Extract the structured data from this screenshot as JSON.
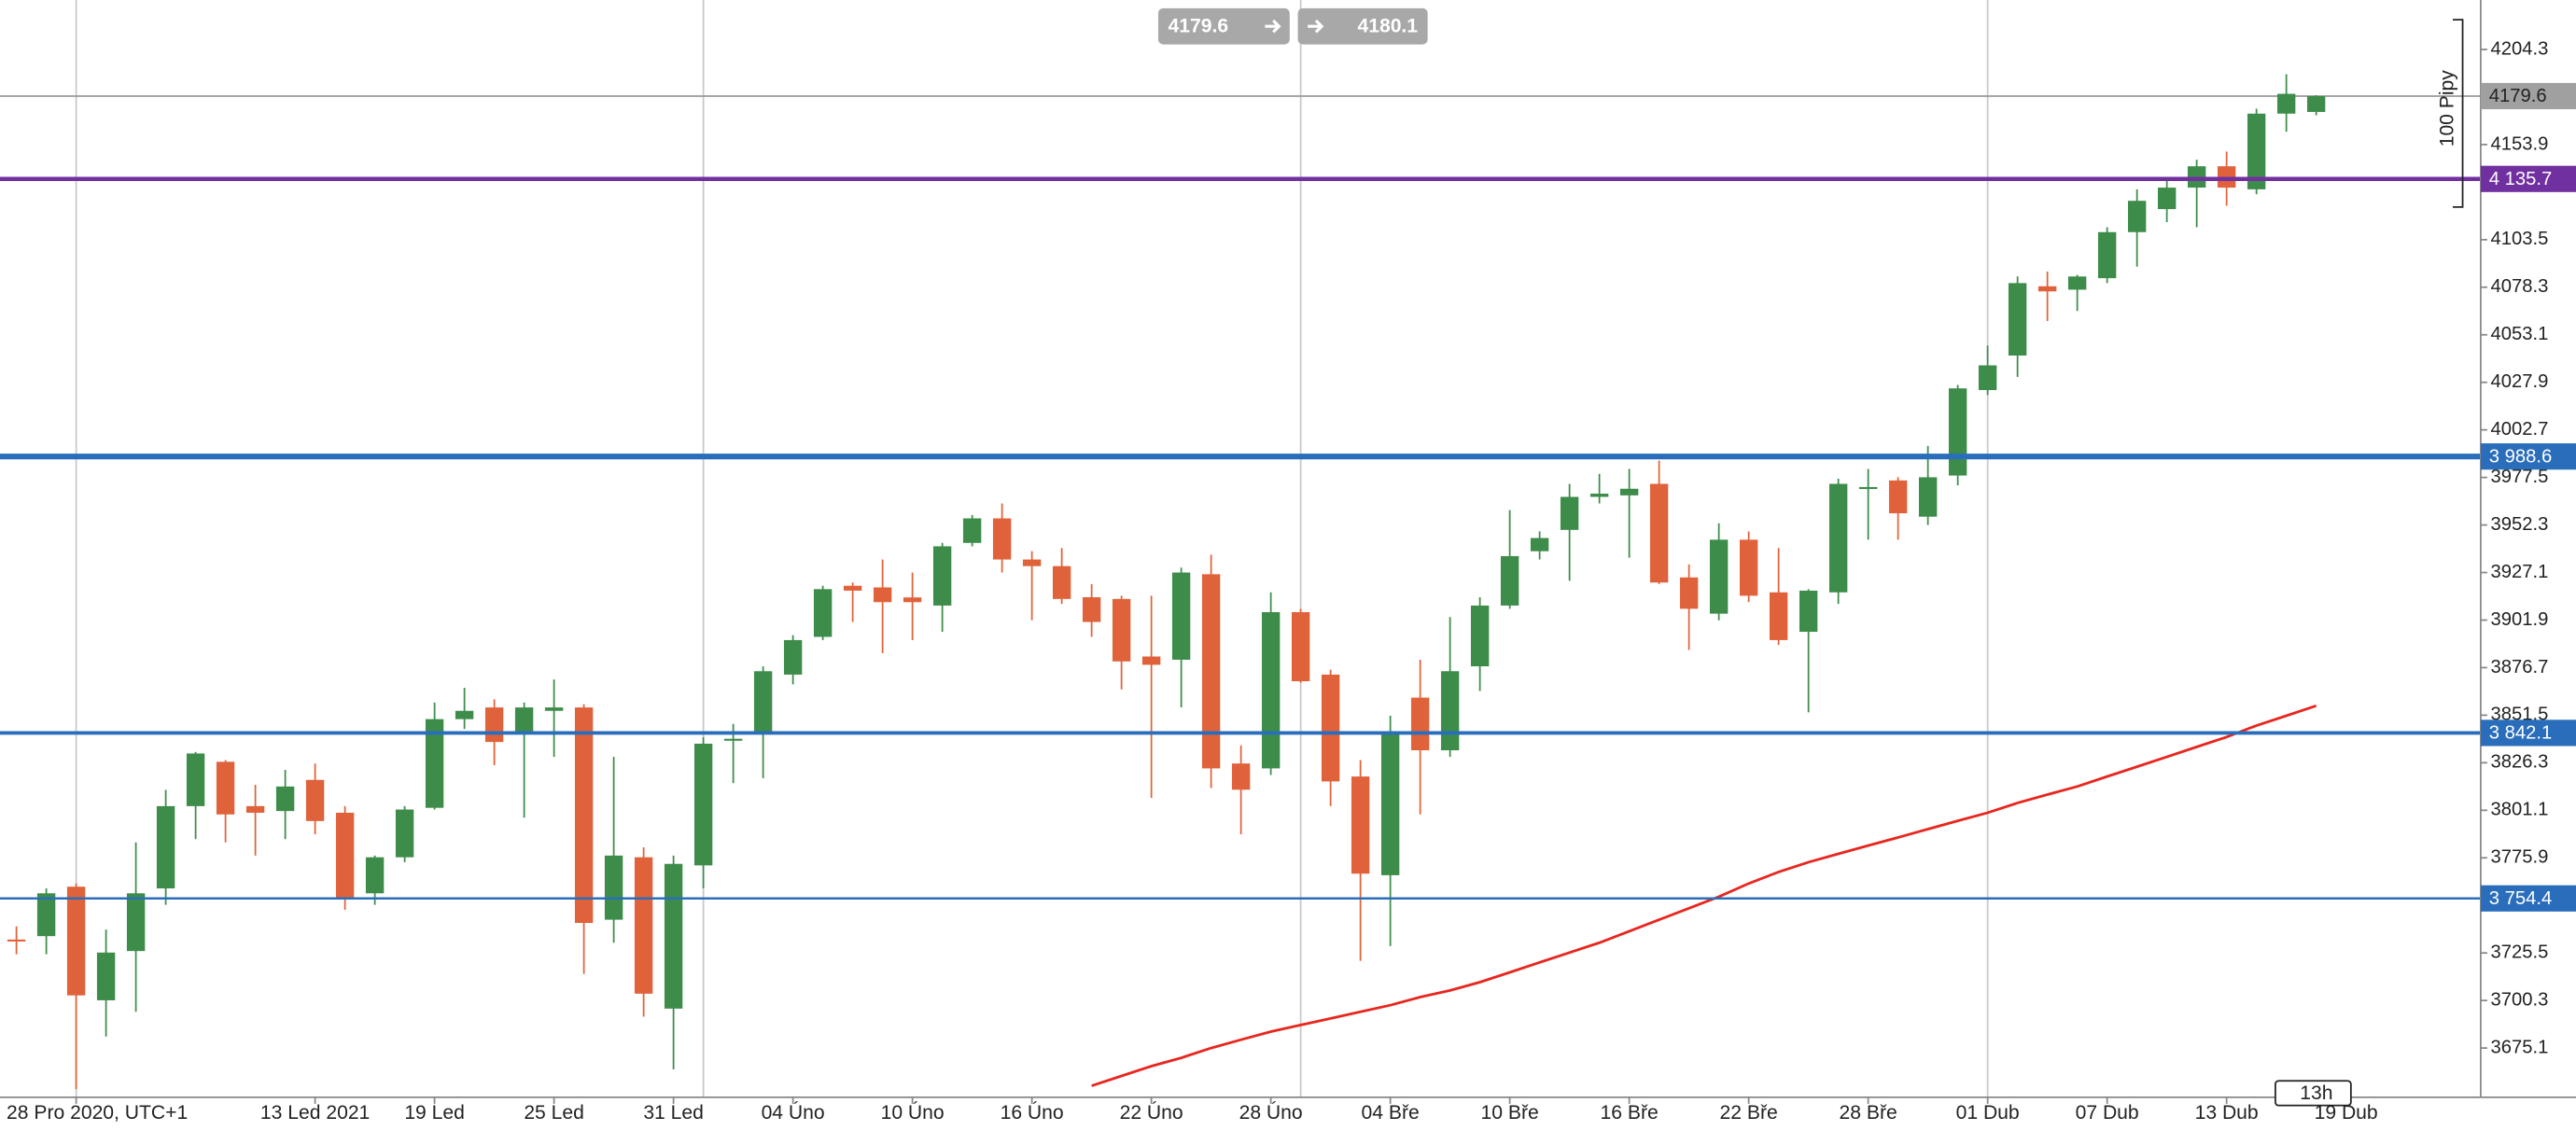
{
  "chart_data": {
    "type": "candlestick",
    "ylim": [
      3649.0,
      4230.5
    ],
    "yticks": [
      4204.3,
      4153.9,
      4103.5,
      4078.3,
      4053.1,
      4027.9,
      4002.7,
      3977.5,
      3952.3,
      3927.1,
      3901.9,
      3876.7,
      3851.5,
      3826.3,
      3801.1,
      3775.9,
      3725.5,
      3700.3,
      3675.1
    ],
    "categories": [
      null,
      null,
      "28 Pro 2020, UTC+1",
      null,
      null,
      null,
      null,
      null,
      null,
      null,
      "13 Led 2021",
      null,
      null,
      null,
      "19 Led",
      null,
      null,
      null,
      "25 Led",
      null,
      null,
      null,
      "31 Led",
      null,
      null,
      null,
      "04 Úno",
      null,
      null,
      null,
      "10 Úno",
      null,
      null,
      null,
      "16 Úno",
      null,
      null,
      null,
      "22 Úno",
      null,
      null,
      null,
      "28 Úno",
      null,
      null,
      null,
      "04 Bře",
      null,
      null,
      null,
      "10 Bře",
      null,
      null,
      null,
      "16 Bře",
      null,
      null,
      null,
      "22 Bře",
      null,
      null,
      null,
      "28 Bře",
      null,
      null,
      null,
      "01 Dub",
      null,
      null,
      null,
      "07 Dub",
      null,
      null,
      null,
      "13 Dub",
      null,
      null,
      null,
      "19 Dub"
    ],
    "up_color": "#3d8c4a",
    "down_color": "#e0623a",
    "open": [
      3732.6,
      3734.4,
      3760.6,
      3700.4,
      3726.5,
      3759.7,
      3803.3,
      3826.8,
      3803.3,
      3800.7,
      3817.2,
      3799.8,
      3757.1,
      3776.2,
      3802.4,
      3849.4,
      3855.6,
      3841.6,
      3853.8,
      3855.6,
      3743.1,
      3776.2,
      3696.0,
      3771.9,
      3838.1,
      3841.6,
      3873.0,
      3893.0,
      3920.1,
      3919.2,
      3913.9,
      3909.6,
      3942.8,
      3955.8,
      3934.0,
      3930.5,
      3914.0,
      3913.1,
      3882.6,
      3880.9,
      3926.2,
      3825.9,
      3823.3,
      3906.1,
      3873.0,
      3819.0,
      3766.7,
      3860.8,
      3832.9,
      3877.4,
      3909.6,
      3938.4,
      3949.7,
      3967.2,
      3968.0,
      3974.1,
      3924.5,
      3905.3,
      3944.5,
      3916.6,
      3895.7,
      3916.6,
      3971.5,
      3975.9,
      3956.7,
      3978.5,
      4023.8,
      4042.1,
      4078.8,
      4077.0,
      4083.1,
      4107.5,
      4119.7,
      4131.1,
      4142.4,
      4130.2,
      4170.3,
      4171.2,
      null
    ],
    "high": [
      3739.6,
      3759.7,
      3762.3,
      3737.9,
      3784.1,
      3811.9,
      3832.0,
      3827.7,
      3814.6,
      3822.5,
      3825.9,
      3803.3,
      3777.1,
      3803.3,
      3858.2,
      3866.0,
      3859.9,
      3858.2,
      3870.4,
      3857.3,
      3829.4,
      3781.5,
      3777.1,
      3839.9,
      3846.9,
      3877.4,
      3893.9,
      3920.1,
      3921.8,
      3934.0,
      3927.1,
      3942.8,
      3957.6,
      3963.7,
      3938.4,
      3940.1,
      3921.0,
      3914.8,
      3914.8,
      3929.7,
      3936.6,
      3835.5,
      3916.6,
      3907.9,
      3875.6,
      3827.7,
      3851.2,
      3880.9,
      3903.5,
      3914.0,
      3960.2,
      3948.9,
      3974.1,
      3979.4,
      3982.0,
      3986.4,
      3931.4,
      3953.2,
      3948.9,
      3940.1,
      3918.3,
      3976.8,
      3982.0,
      3977.6,
      3994.2,
      4026.5,
      4047.4,
      4084.0,
      4086.6,
      4084.9,
      4110.1,
      4130.2,
      4134.6,
      4145.9,
      4150.2,
      4172.9,
      4191.2,
      4180.1,
      null
    ],
    "low": [
      3724.8,
      3724.8,
      3653.3,
      3681.2,
      3694.3,
      3751.0,
      3785.8,
      3784.1,
      3777.1,
      3785.8,
      3788.4,
      3748.4,
      3751.0,
      3773.6,
      3801.5,
      3844.2,
      3825.0,
      3797.2,
      3829.4,
      3714.4,
      3730.9,
      3691.7,
      3663.8,
      3759.7,
      3815.5,
      3818.1,
      3867.8,
      3891.3,
      3900.9,
      3884.4,
      3891.3,
      3895.7,
      3941.0,
      3927.1,
      3901.8,
      3910.5,
      3893.0,
      3865.2,
      3807.6,
      3855.6,
      3812.9,
      3788.4,
      3819.8,
      3868.6,
      3803.3,
      3721.3,
      3729.2,
      3798.9,
      3829.4,
      3864.3,
      3907.9,
      3934.0,
      3922.7,
      3963.7,
      3935.0,
      3921.0,
      3886.1,
      3901.8,
      3911.4,
      3888.7,
      3853.0,
      3910.5,
      3944.5,
      3944.5,
      3952.3,
      3973.3,
      4021.2,
      4030.8,
      4060.4,
      4065.7,
      4080.5,
      4089.2,
      4112.8,
      4110.1,
      4121.5,
      4127.6,
      4160.7,
      4169.4,
      null
    ],
    "close": [
      3732.4,
      3757.1,
      3703.0,
      3725.7,
      3757.1,
      3803.3,
      3831.2,
      3798.9,
      3799.8,
      3813.7,
      3795.4,
      3754.4,
      3776.2,
      3801.5,
      3849.4,
      3853.8,
      3837.3,
      3855.6,
      3855.6,
      3741.4,
      3777.1,
      3703.9,
      3772.7,
      3836.4,
      3839.0,
      3874.8,
      3891.3,
      3918.3,
      3917.5,
      3911.4,
      3911.4,
      3941.0,
      3955.8,
      3934.0,
      3930.5,
      3913.1,
      3900.9,
      3880.0,
      3878.2,
      3927.1,
      3823.3,
      3812.0,
      3906.1,
      3869.5,
      3816.4,
      3767.5,
      3842.5,
      3832.9,
      3874.8,
      3909.6,
      3935.8,
      3945.4,
      3967.2,
      3968.9,
      3971.5,
      3921.8,
      3907.9,
      3944.5,
      3914.8,
      3891.3,
      3917.5,
      3974.1,
      3972.4,
      3958.5,
      3977.6,
      4024.7,
      4036.9,
      4080.5,
      4076.1,
      4084.0,
      4107.5,
      4124.1,
      4131.1,
      4142.4,
      4131.1,
      4170.3,
      4180.8,
      4179.6,
      null
    ],
    "moving_average": {
      "color": "#e8261e",
      "values": [
        null,
        null,
        null,
        null,
        null,
        null,
        null,
        null,
        null,
        null,
        null,
        null,
        null,
        null,
        null,
        null,
        null,
        null,
        null,
        null,
        null,
        null,
        null,
        null,
        null,
        null,
        null,
        null,
        null,
        null,
        null,
        null,
        null,
        null,
        null,
        null,
        3655.1,
        3660.3,
        3665.5,
        3669.9,
        3675.1,
        3679.5,
        3683.8,
        3687.3,
        3690.8,
        3694.3,
        3697.8,
        3702.1,
        3705.6,
        3710.0,
        3715.2,
        3720.5,
        3725.7,
        3730.9,
        3737.0,
        3743.1,
        3749.2,
        3755.3,
        3762.3,
        3768.4,
        3773.6,
        3778.0,
        3782.4,
        3786.7,
        3791.1,
        3795.5,
        3799.8,
        3805.0,
        3809.4,
        3813.7,
        3819.0,
        3824.2,
        3829.4,
        3834.7,
        3839.9,
        3846.0,
        3851.2,
        3856.5,
        null
      ]
    },
    "levels": [
      {
        "value": 4135.7,
        "label": "4 135.7",
        "color": "#7030a0",
        "width": 2.5
      },
      {
        "value": 3988.6,
        "label": "3 988.6",
        "color": "#2a6ebb",
        "width": 3.5
      },
      {
        "value": 3842.1,
        "label": "3 842.1",
        "color": "#2a6ebb",
        "width": 2.2
      },
      {
        "value": 3754.4,
        "label": "3 754.4",
        "color": "#2a6ebb",
        "width": 1.4
      }
    ],
    "current_price": {
      "value": 4179.6,
      "label": "4179.6"
    },
    "sell_price": "4179.6",
    "buy_price": "4180.1",
    "range_label": "100 Pipy",
    "timeframe_label": "13h"
  }
}
